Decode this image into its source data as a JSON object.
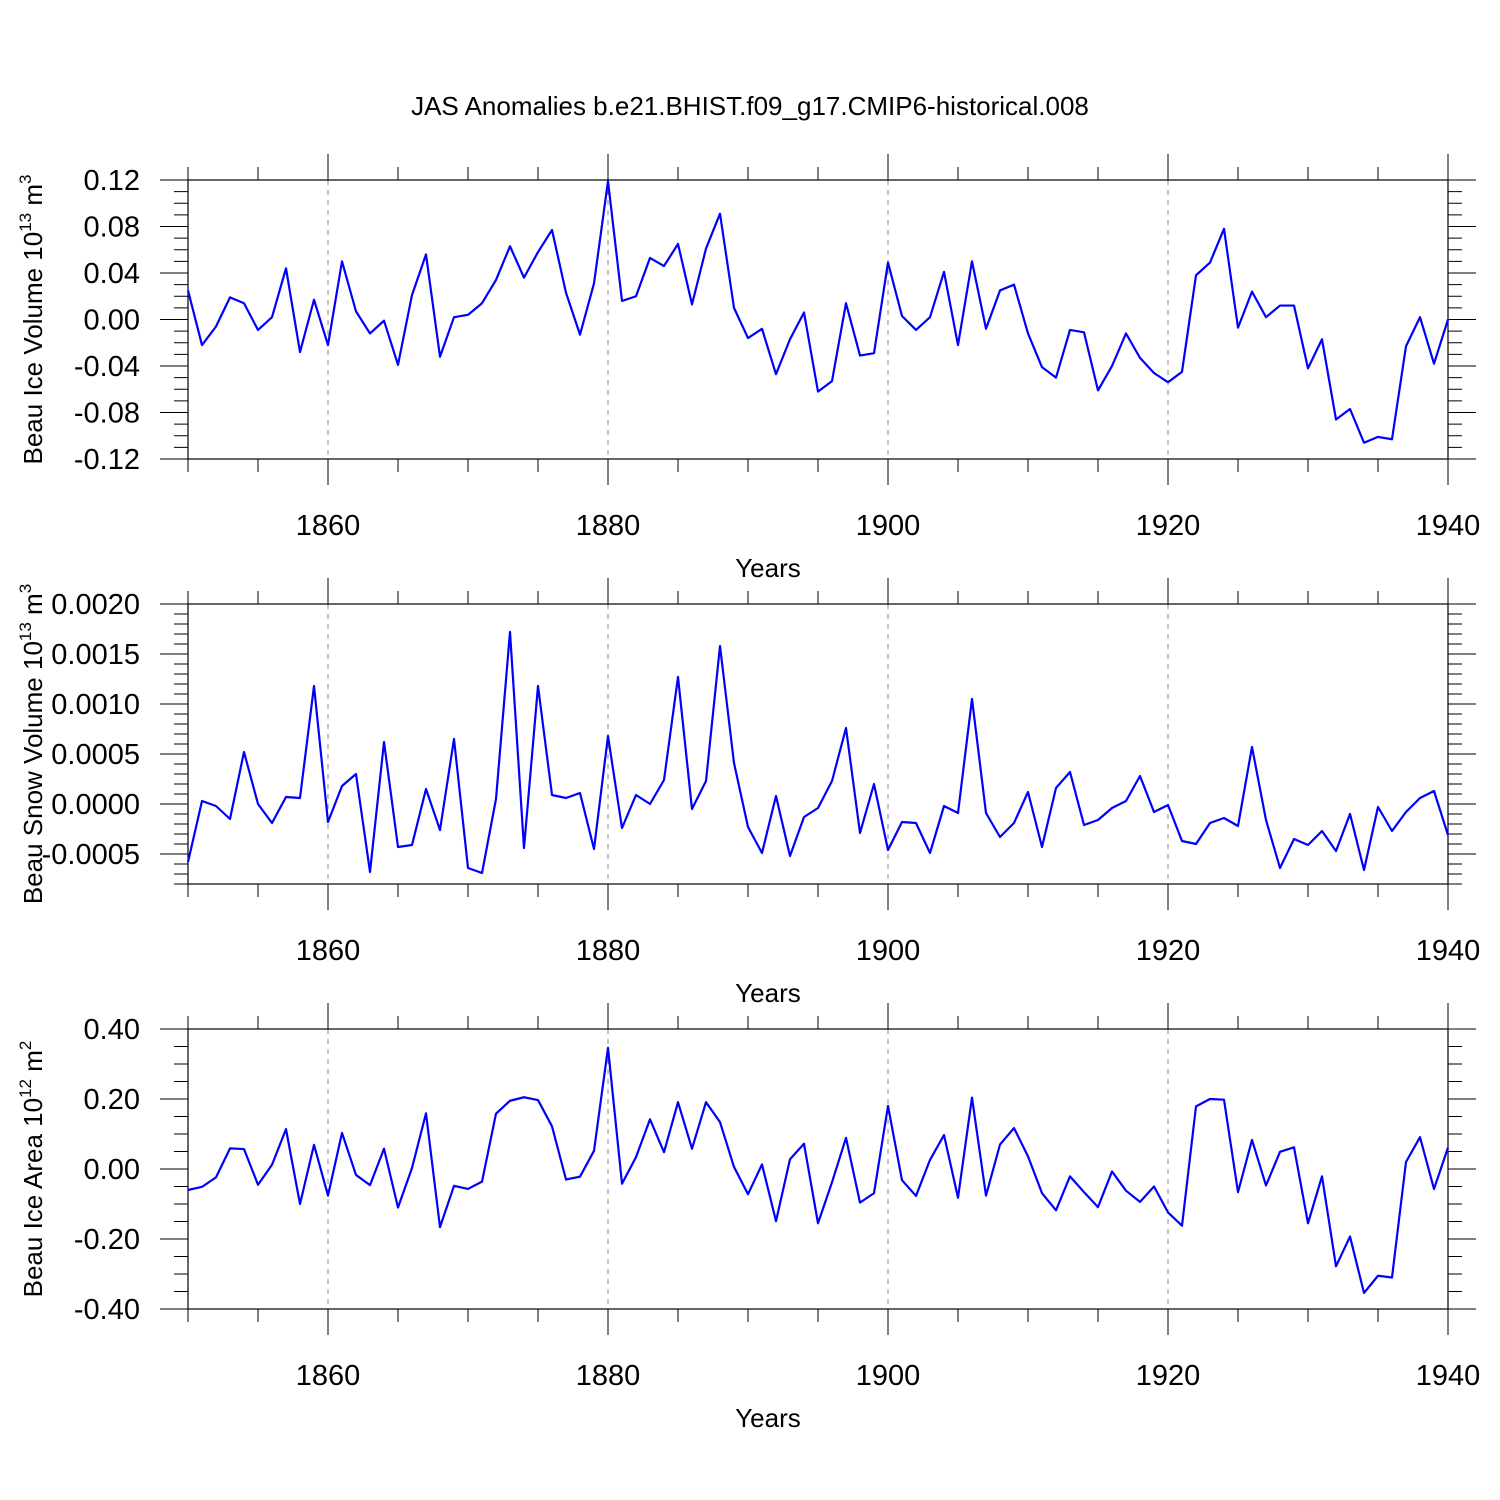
{
  "title": "JAS Anomalies b.e21.BHIST.f09_g17.CMIP6-historical.008",
  "chart_data": [
    {
      "type": "line",
      "title": "",
      "xlabel": "Years",
      "ylabel": "Beau Ice Volume 10",
      "ylabel_sup": "13",
      "ylabel_unit": " m",
      "ylabel_unit_sup": "3",
      "xlim": [
        1850,
        1940
      ],
      "ylim": [
        -0.12,
        0.12
      ],
      "xticks": [
        1860,
        1880,
        1900,
        1920,
        1940
      ],
      "xtick_labels": [
        "1860",
        "1880",
        "1900",
        "1920",
        "1940"
      ],
      "yticks": [
        -0.12,
        -0.08,
        -0.04,
        0.0,
        0.04,
        0.08,
        0.12
      ],
      "ytick_labels": [
        "-0.12",
        "-0.08",
        "-0.04",
        "0.00",
        "0.04",
        "0.08",
        "0.12"
      ],
      "grid": "vertical dashed at major x ticks",
      "series": [
        {
          "name": "ice-volume",
          "color": "#0000ff",
          "x_start": 1850,
          "values": [
            0.025,
            -0.022,
            -0.006,
            0.019,
            0.014,
            -0.009,
            0.002,
            0.044,
            -0.028,
            0.017,
            -0.022,
            0.05,
            0.007,
            -0.012,
            -0.001,
            -0.039,
            0.021,
            0.056,
            -0.032,
            0.002,
            0.004,
            0.014,
            0.034,
            0.063,
            0.036,
            0.058,
            0.077,
            0.023,
            -0.013,
            0.031,
            0.119,
            0.016,
            0.02,
            0.053,
            0.046,
            0.065,
            0.013,
            0.061,
            0.091,
            0.01,
            -0.016,
            -0.008,
            -0.047,
            -0.017,
            0.006,
            -0.062,
            -0.053,
            0.014,
            -0.031,
            -0.029,
            0.049,
            0.003,
            -0.009,
            0.002,
            0.041,
            -0.022,
            0.05,
            -0.008,
            0.025,
            0.03,
            -0.012,
            -0.041,
            -0.05,
            -0.009,
            -0.011,
            -0.061,
            -0.04,
            -0.012,
            -0.033,
            -0.046,
            -0.054,
            -0.045,
            0.038,
            0.049,
            0.078,
            -0.007,
            0.024,
            0.002,
            0.012,
            0.012,
            -0.042,
            -0.017,
            -0.086,
            -0.077,
            -0.106,
            -0.101,
            -0.103,
            -0.023,
            0.002,
            -0.038,
            0.0
          ]
        }
      ]
    },
    {
      "type": "line",
      "title": "",
      "xlabel": "Years",
      "ylabel": "Beau Snow Volume 10",
      "ylabel_sup": "13",
      "ylabel_unit": " m",
      "ylabel_unit_sup": "3",
      "xlim": [
        1850,
        1940
      ],
      "ylim": [
        -0.0008,
        0.002
      ],
      "xticks": [
        1860,
        1880,
        1900,
        1920,
        1940
      ],
      "xtick_labels": [
        "1860",
        "1880",
        "1900",
        "1920",
        "1940"
      ],
      "yticks": [
        -0.0005,
        0.0,
        0.0005,
        0.001,
        0.0015,
        0.002
      ],
      "ytick_labels": [
        "-0.0005",
        "0.0000",
        "0.0005",
        "0.0010",
        "0.0015",
        "0.0020"
      ],
      "grid": "vertical dashed at major x ticks",
      "series": [
        {
          "name": "snow-volume",
          "color": "#0000ff",
          "x_start": 1850,
          "values": [
            -0.00058,
            3e-05,
            -2e-05,
            -0.00015,
            0.00052,
            0.0,
            -0.00019,
            7e-05,
            6e-05,
            0.00118,
            -0.00018,
            0.00018,
            0.0003,
            -0.00068,
            0.00062,
            -0.00043,
            -0.00041,
            0.00015,
            -0.00026,
            0.00065,
            -0.00064,
            -0.00069,
            5e-05,
            0.00172,
            -0.00044,
            0.00118,
            9e-05,
            6e-05,
            0.00011,
            -0.00045,
            0.00068,
            -0.00024,
            9e-05,
            0.0,
            0.00024,
            0.00127,
            -5e-05,
            0.00023,
            0.00158,
            0.00041,
            -0.00023,
            -0.00049,
            8e-05,
            -0.00052,
            -0.00013,
            -4e-05,
            0.00023,
            0.00076,
            -0.00029,
            0.0002,
            -0.00046,
            -0.00018,
            -0.00019,
            -0.00049,
            -2e-05,
            -9e-05,
            0.00105,
            -9e-05,
            -0.00033,
            -0.00019,
            0.00012,
            -0.00043,
            0.00016,
            0.00032,
            -0.00021,
            -0.00016,
            -4e-05,
            3e-05,
            0.00028,
            -8e-05,
            -1e-05,
            -0.00037,
            -0.0004,
            -0.00019,
            -0.00014,
            -0.00022,
            0.00057,
            -0.00016,
            -0.00064,
            -0.00035,
            -0.00041,
            -0.00027,
            -0.00047,
            -0.0001,
            -0.00066,
            -3e-05,
            -0.00027,
            -8e-05,
            6e-05,
            0.00013,
            -0.00031
          ]
        }
      ]
    },
    {
      "type": "line",
      "title": "",
      "xlabel": "Years",
      "ylabel": "Beau Ice Area 10",
      "ylabel_sup": "12",
      "ylabel_unit": " m",
      "ylabel_unit_sup": "2",
      "xlim": [
        1850,
        1940
      ],
      "ylim": [
        -0.4,
        0.4
      ],
      "xticks": [
        1860,
        1880,
        1900,
        1920,
        1940
      ],
      "xtick_labels": [
        "1860",
        "1880",
        "1900",
        "1920",
        "1940"
      ],
      "yticks": [
        -0.4,
        -0.2,
        0.0,
        0.2,
        0.4
      ],
      "ytick_labels": [
        "-0.40",
        "-0.20",
        "0.00",
        "0.20",
        "0.40"
      ],
      "grid": "vertical dashed at major x ticks",
      "series": [
        {
          "name": "ice-area",
          "color": "#0000ff",
          "x_start": 1850,
          "values": [
            -0.06,
            -0.051,
            -0.024,
            0.059,
            0.057,
            -0.045,
            0.012,
            0.114,
            -0.1,
            0.069,
            -0.076,
            0.103,
            -0.017,
            -0.046,
            0.058,
            -0.11,
            0.003,
            0.159,
            -0.166,
            -0.048,
            -0.057,
            -0.036,
            0.158,
            0.195,
            0.205,
            0.197,
            0.122,
            -0.03,
            -0.022,
            0.052,
            0.346,
            -0.042,
            0.034,
            0.142,
            0.048,
            0.191,
            0.058,
            0.191,
            0.134,
            0.006,
            -0.072,
            0.013,
            -0.149,
            0.028,
            0.072,
            -0.155,
            -0.038,
            0.089,
            -0.096,
            -0.069,
            0.18,
            -0.032,
            -0.077,
            0.026,
            0.097,
            -0.082,
            0.204,
            -0.076,
            0.07,
            0.117,
            0.036,
            -0.069,
            -0.118,
            -0.021,
            -0.066,
            -0.109,
            -0.007,
            -0.062,
            -0.094,
            -0.05,
            -0.124,
            -0.162,
            0.179,
            0.2,
            0.198,
            -0.066,
            0.083,
            -0.047,
            0.049,
            0.062,
            -0.155,
            -0.021,
            -0.278,
            -0.193,
            -0.354,
            -0.305,
            -0.31,
            0.02,
            0.091,
            -0.057,
            0.061
          ]
        }
      ]
    }
  ]
}
